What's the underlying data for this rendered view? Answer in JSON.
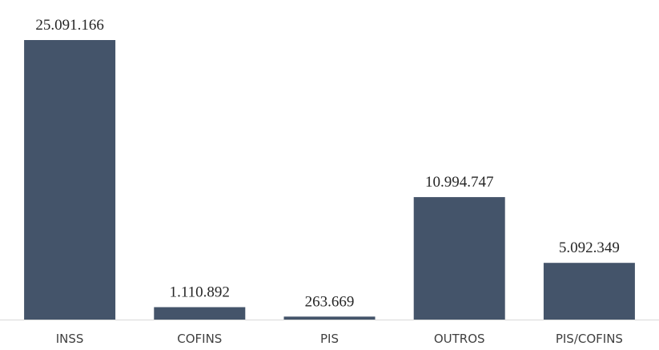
{
  "chart_data": {
    "type": "bar",
    "categories": [
      "INSS",
      "COFINS",
      "PIS",
      "OUTROS",
      "PIS/COFINS"
    ],
    "values": [
      25091166,
      1110892,
      263669,
      10994747,
      5092349
    ],
    "data_labels": [
      "25.091.166",
      "1.110.892",
      "263.669",
      "10.994.747",
      "5.092.349"
    ],
    "title": "",
    "xlabel": "",
    "ylabel": "",
    "ylim": [
      0,
      25091166
    ],
    "grid": false,
    "legend": "none",
    "colors": {
      "bar": "#44546a",
      "axis": "#d9d9d9",
      "label": "#262626",
      "tick": "#404040"
    }
  }
}
